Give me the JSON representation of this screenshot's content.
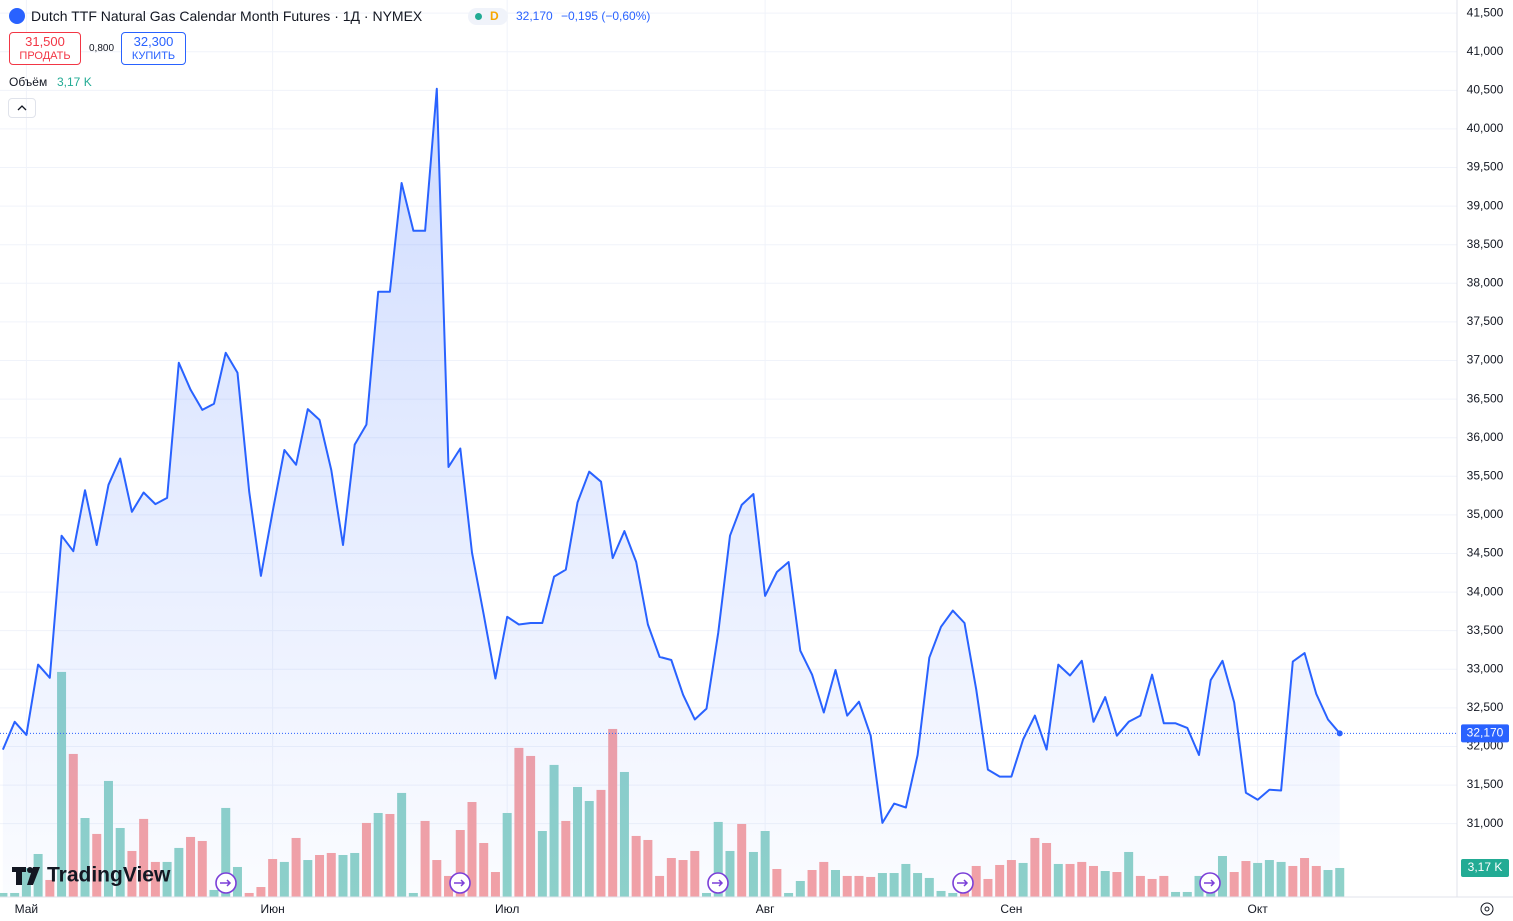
{
  "header": {
    "title": "Dutch TTF Natural Gas Calendar Month Futures · 1Д · NYMEX",
    "interval_badge": "D",
    "last_price": "32,170",
    "change": "−0,195 (−0,60%)",
    "sell_price": "31,500",
    "sell_label": "ПРОДАТЬ",
    "spread": "0,800",
    "buy_price": "32,300",
    "buy_label": "КУПИТЬ",
    "logo": "TradingView"
  },
  "chart_data": {
    "type": "area",
    "grid": true,
    "xlim": [
      -0.25,
      124
    ],
    "xticks": [
      {
        "value": 2,
        "label": "Май"
      },
      {
        "value": 23,
        "label": "Июн"
      },
      {
        "value": 43,
        "label": "Июл"
      },
      {
        "value": 65,
        "label": "Авг"
      },
      {
        "value": 86,
        "label": "Сен"
      },
      {
        "value": 107,
        "label": "Окт"
      }
    ],
    "ylim": [
      30050,
      41670
    ],
    "yticks": [
      {
        "value": 31000,
        "label": "31,000"
      },
      {
        "value": 31500,
        "label": "31,500"
      },
      {
        "value": 32000,
        "label": "32,000"
      },
      {
        "value": 32500,
        "label": "32,500"
      },
      {
        "value": 33000,
        "label": "33,000"
      },
      {
        "value": 33500,
        "label": "33,500"
      },
      {
        "value": 34000,
        "label": "34,000"
      },
      {
        "value": 34500,
        "label": "34,500"
      },
      {
        "value": 35000,
        "label": "35,000"
      },
      {
        "value": 35500,
        "label": "35,500"
      },
      {
        "value": 36000,
        "label": "36,000"
      },
      {
        "value": 36500,
        "label": "36,500"
      },
      {
        "value": 37000,
        "label": "37,000"
      },
      {
        "value": 37500,
        "label": "37,500"
      },
      {
        "value": 38000,
        "label": "38,000"
      },
      {
        "value": 38500,
        "label": "38,500"
      },
      {
        "value": 39000,
        "label": "39,000"
      },
      {
        "value": 39500,
        "label": "39,500"
      },
      {
        "value": 40000,
        "label": "40,000"
      },
      {
        "value": 40500,
        "label": "40,500"
      },
      {
        "value": 41000,
        "label": "41,000"
      },
      {
        "value": 41500,
        "label": "41,500"
      }
    ],
    "series": [
      {
        "color": "#2962ff",
        "values": [
          31960,
          32320,
          32150,
          33060,
          32890,
          34730,
          34530,
          35320,
          34610,
          35390,
          35730,
          35040,
          35290,
          35140,
          35220,
          36970,
          36620,
          36360,
          36440,
          37100,
          36840,
          35300,
          34210,
          35040,
          35840,
          35650,
          36370,
          36230,
          35580,
          34610,
          35910,
          36170,
          37890,
          37890,
          39300,
          38680,
          38680,
          40520,
          35620,
          35860,
          34510,
          33710,
          32880,
          33680,
          33580,
          33600,
          33600,
          34200,
          34290,
          35160,
          35560,
          35430,
          34440,
          34790,
          34390,
          33580,
          33160,
          33120,
          32670,
          32350,
          32490,
          33470,
          34730,
          35130,
          35270,
          33950,
          34260,
          34390,
          33240,
          32930,
          32440,
          32990,
          32400,
          32580,
          32140,
          31010,
          31260,
          31210,
          31890,
          33150,
          33550,
          33760,
          33600,
          32740,
          31700,
          31610,
          31610,
          32090,
          32400,
          31960,
          33060,
          32920,
          33110,
          32320,
          32640,
          32140,
          32320,
          32400,
          32930,
          32300,
          32300,
          32240,
          31890,
          32860,
          33110,
          32570,
          31400,
          31310,
          31440,
          31430,
          33100,
          33210,
          32680,
          32350,
          32170
        ]
      }
    ],
    "volume": {
      "name": "Объём",
      "label": "3,17 K",
      "value": 3170,
      "vlim": [
        0,
        98000
      ],
      "values": [
        440,
        440,
        3170,
        4700,
        1860,
        24590,
        15630,
        8630,
        6890,
        12680,
        7540,
        5030,
        8530,
        3830,
        3830,
        5360,
        6560,
        6120,
        770,
        9730,
        3280,
        440,
        1090,
        4150,
        3830,
        6450,
        4040,
        4590,
        4810,
        4590,
        4810,
        8090,
        9180,
        9070,
        11370,
        440,
        8310,
        4040,
        2300,
        7320,
        10380,
        5900,
        2730,
        9180,
        16290,
        15410,
        7210,
        14430,
        8310,
        12020,
        10490,
        11700,
        18360,
        13660,
        6670,
        6230,
        2300,
        4260,
        4040,
        5030,
        440,
        8200,
        5030,
        7980,
        4920,
        7210,
        3060,
        440,
        1750,
        2950,
        3830,
        2950,
        2300,
        2300,
        2190,
        2620,
        2620,
        3610,
        2620,
        2080,
        660,
        440,
        2300,
        3390,
        1970,
        3500,
        4040,
        3720,
        6450,
        5900,
        3610,
        3610,
        3830,
        3390,
        2840,
        2730,
        4920,
        2300,
        1970,
        2300,
        550,
        550,
        2300,
        2080,
        4480,
        2730,
        3930,
        3720,
        4040,
        3830,
        3390,
        4260,
        3390,
        2950,
        3170
      ],
      "colors": [
        "#8fd2c9",
        "#8fd2c9",
        "#8fd2c9",
        "#8fd2c9",
        "#f5a2a5",
        "#8fd2c9",
        "#f5a2a5",
        "#8fd2c9",
        "#f5a2a5",
        "#8fd2c9",
        "#8fd2c9",
        "#f5a2a5",
        "#f5a2a5",
        "#f5a2a5",
        "#8fd2c9",
        "#8fd2c9",
        "#f5a2a5",
        "#f5a2a5",
        "#8fd2c9",
        "#8fd2c9",
        "#8fd2c9",
        "#f5a2a5",
        "#f5a2a5",
        "#f5a2a5",
        "#8fd2c9",
        "#f5a2a5",
        "#8fd2c9",
        "#f5a2a5",
        "#f5a2a5",
        "#8fd2c9",
        "#8fd2c9",
        "#f5a2a5",
        "#8fd2c9",
        "#f5a2a5",
        "#8fd2c9",
        "#8fd2c9",
        "#f5a2a5",
        "#f5a2a5",
        "#f5a2a5",
        "#f5a2a5",
        "#f5a2a5",
        "#f5a2a5",
        "#f5a2a5",
        "#8fd2c9",
        "#f5a2a5",
        "#f5a2a5",
        "#8fd2c9",
        "#8fd2c9",
        "#f5a2a5",
        "#8fd2c9",
        "#8fd2c9",
        "#f5a2a5",
        "#f5a2a5",
        "#8fd2c9",
        "#f5a2a5",
        "#f5a2a5",
        "#f5a2a5",
        "#f5a2a5",
        "#f5a2a5",
        "#f5a2a5",
        "#8fd2c9",
        "#8fd2c9",
        "#8fd2c9",
        "#f5a2a5",
        "#8fd2c9",
        "#8fd2c9",
        "#f5a2a5",
        "#8fd2c9",
        "#8fd2c9",
        "#f5a2a5",
        "#f5a2a5",
        "#8fd2c9",
        "#f5a2a5",
        "#f5a2a5",
        "#f5a2a5",
        "#8fd2c9",
        "#8fd2c9",
        "#8fd2c9",
        "#8fd2c9",
        "#8fd2c9",
        "#8fd2c9",
        "#8fd2c9",
        "#f5a2a5",
        "#f5a2a5",
        "#f5a2a5",
        "#f5a2a5",
        "#f5a2a5",
        "#8fd2c9",
        "#f5a2a5",
        "#f5a2a5",
        "#8fd2c9",
        "#f5a2a5",
        "#f5a2a5",
        "#f5a2a5",
        "#8fd2c9",
        "#f5a2a5",
        "#8fd2c9",
        "#f5a2a5",
        "#f5a2a5",
        "#f5a2a5",
        "#8fd2c9",
        "#8fd2c9",
        "#8fd2c9",
        "#8fd2c9",
        "#8fd2c9",
        "#f5a2a5",
        "#f5a2a5",
        "#8fd2c9",
        "#8fd2c9",
        "#8fd2c9",
        "#f5a2a5",
        "#f5a2a5",
        "#f5a2a5",
        "#8fd2c9",
        "#8fd2c9"
      ]
    }
  }
}
